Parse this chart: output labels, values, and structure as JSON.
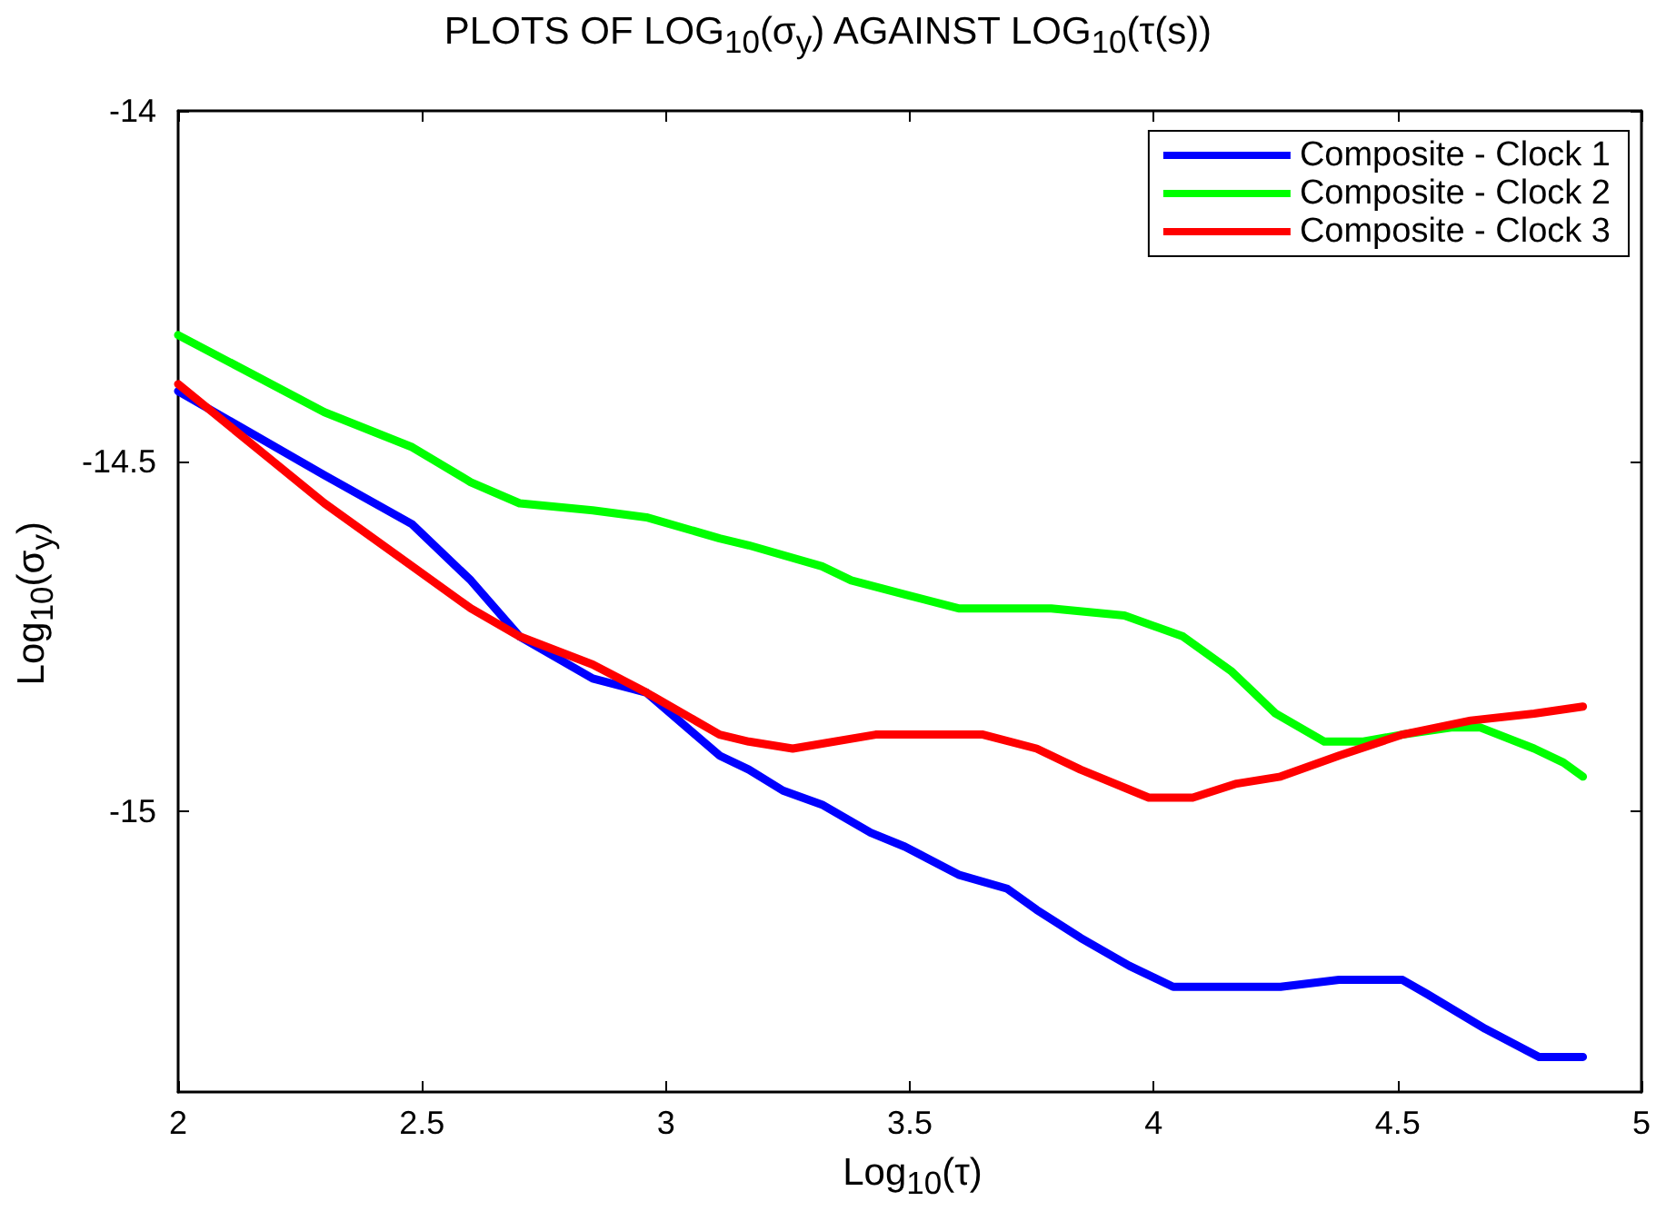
{
  "chart_data": {
    "type": "line",
    "title": "PLOTS OF LOG$_{10}$(σ$_{y}$) AGAINST LOG$_{10}$(τ(s))",
    "xlabel": "Log$_{10}$(τ)",
    "ylabel": "Log$_{10}$(σ$_{y}$)",
    "xlim": [
      2,
      5
    ],
    "xticks": [
      2,
      2.5,
      3,
      3.5,
      4,
      4.5,
      5
    ],
    "ylim": [
      -15.4,
      -14
    ],
    "yticks": [
      -15,
      -14.5,
      -14
    ],
    "grid": false,
    "legend": "top right",
    "marker": "none",
    "line_style": "solid",
    "series": [
      {
        "name": "Composite - Clock 1",
        "color": "#0000ff",
        "x": [
          2.0,
          2.3,
          2.48,
          2.6,
          2.7,
          2.85,
          2.96,
          3.11,
          3.17,
          3.24,
          3.32,
          3.42,
          3.49,
          3.6,
          3.7,
          3.76,
          3.85,
          3.95,
          4.04,
          4.12,
          4.26,
          4.38,
          4.51,
          4.56,
          4.68,
          4.79,
          4.88
        ],
        "values": [
          -14.4,
          -14.52,
          -14.59,
          -14.67,
          -14.75,
          -14.81,
          -14.83,
          -14.92,
          -14.94,
          -14.97,
          -14.99,
          -15.03,
          -15.05,
          -15.09,
          -15.11,
          -15.14,
          -15.18,
          -15.22,
          -15.25,
          -15.25,
          -15.25,
          -15.24,
          -15.24,
          -15.26,
          -15.31,
          -15.35,
          -15.35
        ]
      },
      {
        "name": "Composite - Clock 2",
        "color": "#00ff00",
        "x": [
          2.0,
          2.3,
          2.48,
          2.6,
          2.7,
          2.85,
          2.96,
          3.11,
          3.17,
          3.32,
          3.38,
          3.49,
          3.6,
          3.7,
          3.79,
          3.94,
          4.06,
          4.16,
          4.25,
          4.35,
          4.43,
          4.51,
          4.61,
          4.67,
          4.78,
          4.84,
          4.88
        ],
        "values": [
          -14.32,
          -14.43,
          -14.48,
          -14.53,
          -14.56,
          -14.57,
          -14.58,
          -14.61,
          -14.62,
          -14.65,
          -14.67,
          -14.69,
          -14.71,
          -14.71,
          -14.71,
          -14.72,
          -14.75,
          -14.8,
          -14.86,
          -14.9,
          -14.9,
          -14.89,
          -14.88,
          -14.88,
          -14.91,
          -14.93,
          -14.95
        ]
      },
      {
        "name": "Composite - Clock 3",
        "color": "#ff0000",
        "x": [
          2.0,
          2.3,
          2.48,
          2.6,
          2.7,
          2.85,
          2.96,
          3.11,
          3.17,
          3.26,
          3.43,
          3.49,
          3.6,
          3.65,
          3.76,
          3.85,
          3.99,
          4.08,
          4.17,
          4.26,
          4.38,
          4.51,
          4.65,
          4.78,
          4.88
        ],
        "values": [
          -14.39,
          -14.56,
          -14.65,
          -14.71,
          -14.75,
          -14.79,
          -14.83,
          -14.89,
          -14.9,
          -14.91,
          -14.89,
          -14.89,
          -14.89,
          -14.89,
          -14.91,
          -14.94,
          -14.98,
          -14.98,
          -14.96,
          -14.95,
          -14.92,
          -14.89,
          -14.87,
          -14.86,
          -14.85
        ]
      }
    ]
  }
}
